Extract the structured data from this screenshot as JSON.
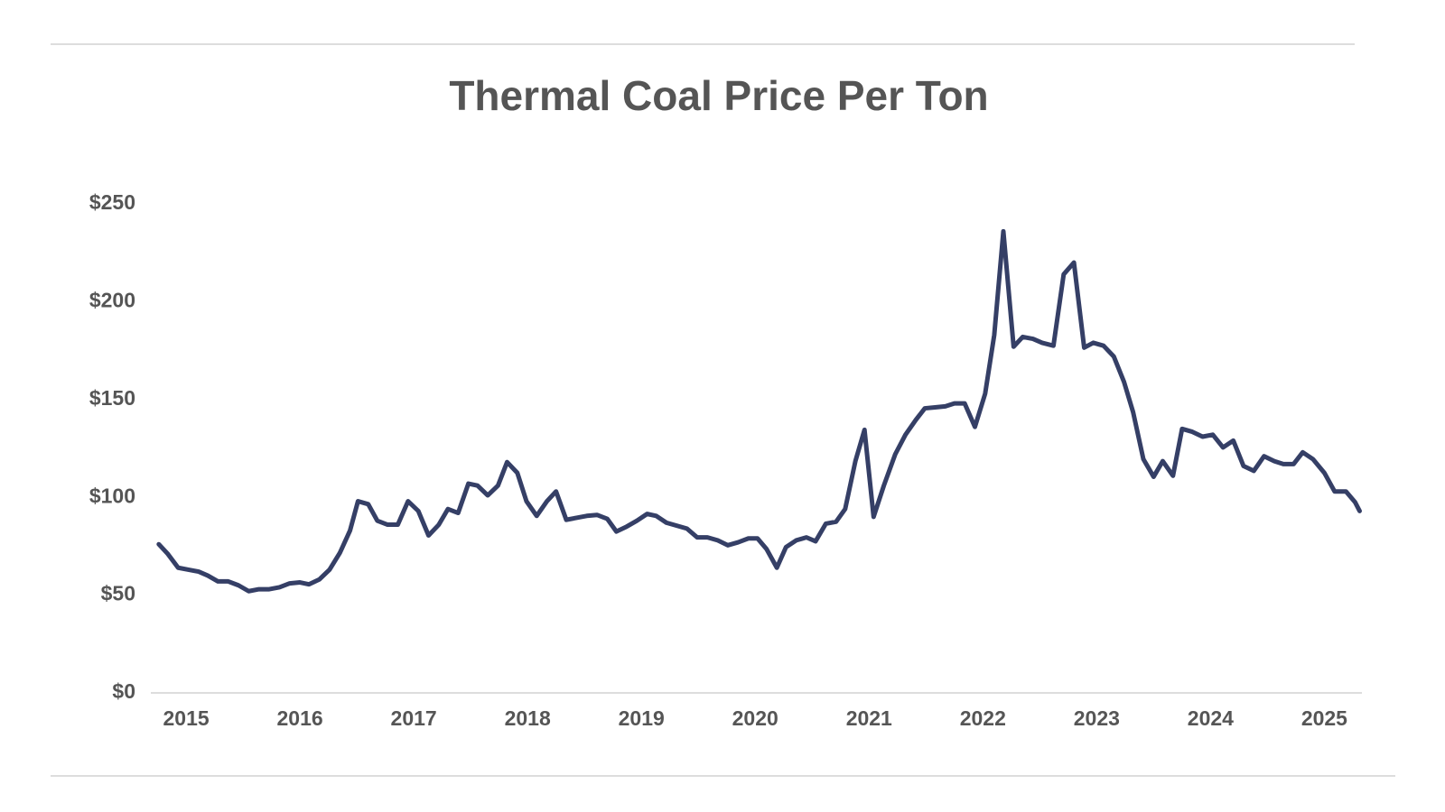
{
  "chart_data": {
    "type": "line",
    "title": "Thermal Coal Price Per Ton",
    "x": [
      2014.76,
      2014.84,
      2014.93,
      2015.02,
      2015.11,
      2015.19,
      2015.28,
      2015.37,
      2015.46,
      2015.55,
      2015.64,
      2015.73,
      2015.82,
      2015.91,
      2016.0,
      2016.08,
      2016.17,
      2016.26,
      2016.35,
      2016.44,
      2016.51,
      2016.6,
      2016.68,
      2016.77,
      2016.86,
      2016.95,
      2017.04,
      2017.13,
      2017.22,
      2017.3,
      2017.39,
      2017.48,
      2017.56,
      2017.65,
      2017.74,
      2017.82,
      2017.91,
      2017.99,
      2018.08,
      2018.17,
      2018.25,
      2018.34,
      2018.43,
      2018.52,
      2018.61,
      2018.7,
      2018.78,
      2018.87,
      2018.96,
      2019.05,
      2019.13,
      2019.22,
      2019.31,
      2019.4,
      2019.49,
      2019.58,
      2019.67,
      2019.76,
      2019.85,
      2019.94,
      2020.02,
      2020.1,
      2020.19,
      2020.27,
      2020.36,
      2020.45,
      2020.53,
      2020.62,
      2020.71,
      2020.79,
      2020.88,
      2020.96,
      2021.04,
      2021.13,
      2021.23,
      2021.32,
      2021.41,
      2021.49,
      2021.58,
      2021.67,
      2021.75,
      2021.84,
      2021.93,
      2022.02,
      2022.1,
      2022.18,
      2022.27,
      2022.35,
      2022.44,
      2022.52,
      2022.62,
      2022.71,
      2022.8,
      2022.89,
      2022.97,
      2023.06,
      2023.15,
      2023.24,
      2023.32,
      2023.41,
      2023.5,
      2023.58,
      2023.67,
      2023.75,
      2023.84,
      2023.93,
      2024.02,
      2024.11,
      2024.2,
      2024.29,
      2024.38,
      2024.47,
      2024.56,
      2024.64,
      2024.73,
      2024.81,
      2024.9,
      2025.0,
      2025.09,
      2025.19,
      2025.27,
      2025.31
    ],
    "series": [
      {
        "color": "#353f66",
        "values": [
          76,
          71,
          64,
          63,
          62,
          60,
          57,
          57,
          55,
          52,
          53,
          53,
          54,
          56,
          56.5,
          55.5,
          58,
          63,
          71.5,
          83,
          98,
          96.5,
          88,
          86,
          86,
          98,
          93,
          80.5,
          86,
          94,
          92,
          107,
          106,
          101,
          106,
          118,
          112.5,
          98,
          90.5,
          98,
          103,
          88.5,
          89.5,
          90.5,
          91,
          89,
          82.5,
          85,
          88,
          91.5,
          90.5,
          87,
          85.5,
          84,
          79.5,
          79.5,
          78,
          75.5,
          77,
          79,
          79,
          73.5,
          64,
          74.5,
          78,
          79.5,
          77.5,
          86.5,
          87.5,
          94,
          118.5,
          134.5,
          90,
          106,
          122,
          132,
          139.5,
          145.5,
          146,
          146.5,
          148,
          148,
          136,
          153,
          183,
          236,
          177,
          182,
          181,
          179,
          177.5,
          214,
          220,
          176.5,
          179,
          177.5,
          172,
          159,
          143.5,
          119.5,
          110.5,
          118.5,
          111,
          135,
          133.5,
          131,
          132,
          125.5,
          129,
          116,
          113.5,
          121,
          118.5,
          117,
          117,
          123,
          119.5,
          112.5,
          103,
          103,
          97.5,
          93
        ]
      }
    ],
    "xlim": [
      2014.69,
      2025.33
    ],
    "xticks": [
      2015,
      2016,
      2017,
      2018,
      2019,
      2020,
      2021,
      2022,
      2023,
      2024,
      2025
    ],
    "ylim": [
      0,
      250
    ],
    "yticks": [
      {
        "value": 0,
        "label": "$0"
      },
      {
        "value": 50,
        "label": "$50"
      },
      {
        "value": 100,
        "label": "$100"
      },
      {
        "value": 150,
        "label": "$150"
      },
      {
        "value": 200,
        "label": "$200"
      },
      {
        "value": 250,
        "label": "$250"
      }
    ],
    "grid": false
  }
}
